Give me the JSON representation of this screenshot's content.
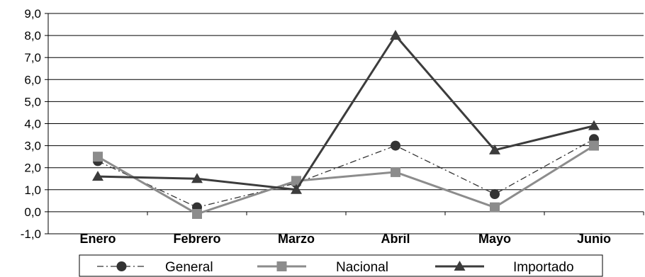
{
  "chart_data": {
    "type": "line",
    "title": "",
    "xlabel": "",
    "ylabel": "",
    "categories": [
      "Enero",
      "Febrero",
      "Marzo",
      "Abril",
      "Mayo",
      "Junio"
    ],
    "ylim": [
      -1,
      9
    ],
    "yticks": [
      "-1,0",
      "0,0",
      "1,0",
      "2,0",
      "3,0",
      "4,0",
      "5,0",
      "6,0",
      "7,0",
      "8,0",
      "9,0"
    ],
    "grid": true,
    "legend": "bottom",
    "series": [
      {
        "name": "General",
        "values": [
          2.3,
          0.2,
          1.3,
          3.0,
          0.8,
          3.3
        ],
        "color": "#333333",
        "marker": "circle",
        "dash": "dash-dot"
      },
      {
        "name": "Nacional",
        "values": [
          2.5,
          -0.1,
          1.4,
          1.8,
          0.2,
          3.0
        ],
        "color": "#8c8c8c",
        "marker": "square",
        "dash": "solid"
      },
      {
        "name": "Importado",
        "values": [
          1.6,
          1.5,
          1.0,
          8.0,
          2.8,
          3.9
        ],
        "color": "#3c3c3c",
        "marker": "triangle",
        "dash": "solid"
      }
    ]
  }
}
